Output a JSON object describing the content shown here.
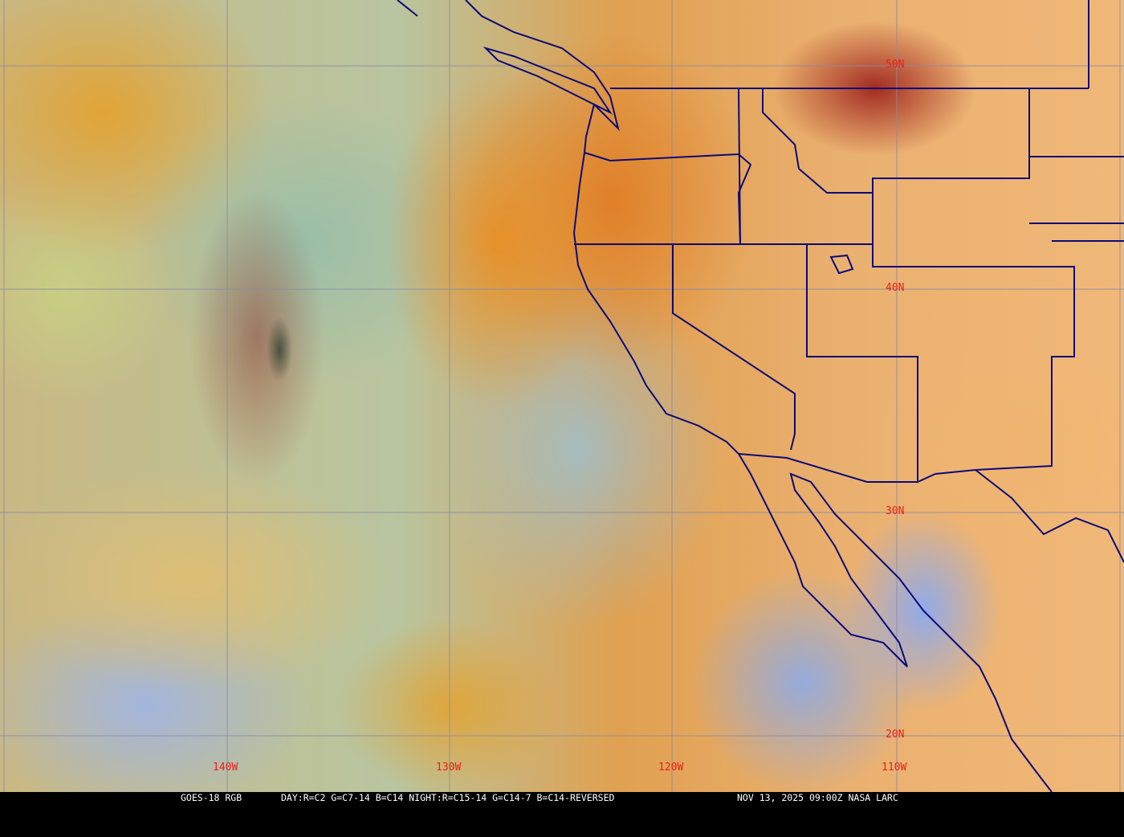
{
  "map": {
    "lat_labels": [
      "50N",
      "40N",
      "30N",
      "20N"
    ],
    "lon_labels": [
      "140W",
      "130W",
      "120W",
      "110W"
    ],
    "label_color": "#e8201c",
    "grid_color": "#8a8aa8",
    "boundary_color": "#0a0a78"
  },
  "caption": {
    "product": "GOES-18 RGB",
    "recipe": "DAY:R=C2 G=C7-14 B=C14 NIGHT:R=C15-14 G=C14-7 B=C14-REVERSED",
    "datetime_source": "NOV 13, 2025 09:00Z NASA LARC"
  }
}
